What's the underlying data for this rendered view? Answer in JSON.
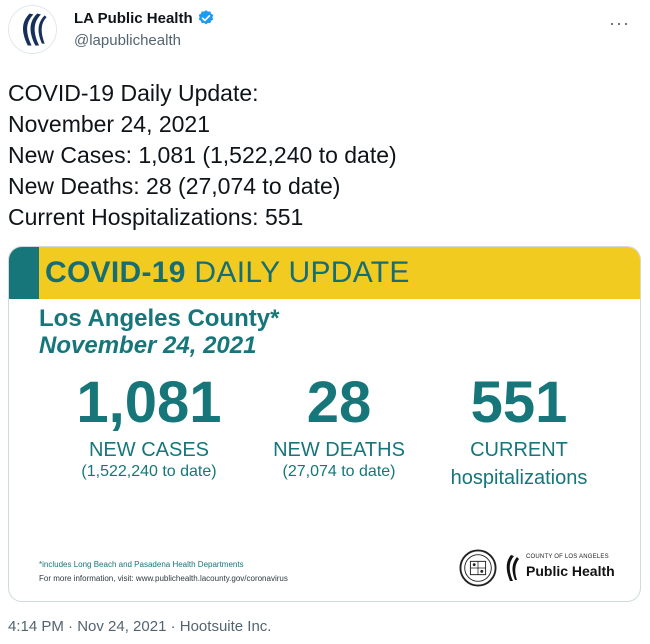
{
  "author": {
    "display_name": "LA Public Health",
    "handle": "@lapublichealth",
    "verified_icon": "verified-badge-icon",
    "more_icon": "ellipsis-icon"
  },
  "tweet": {
    "lines": [
      "COVID-19 Daily Update:",
      "November 24, 2021",
      "New Cases: 1,081 (1,522,240 to date)",
      "New Deaths: 28 (27,074 to date)",
      "Current Hospitalizations: 551"
    ]
  },
  "card": {
    "banner_bold": "COVID-19",
    "banner_rest": " DAILY UPDATE",
    "county": "Los Angeles County*",
    "date": "November 24, 2021",
    "stats": {
      "cases": {
        "value": "1,081",
        "label": "NEW CASES",
        "sub": "(1,522,240 to date)"
      },
      "deaths": {
        "value": "28",
        "label": "NEW DEATHS",
        "sub": "(27,074 to date)"
      },
      "hospitalizations": {
        "value": "551",
        "label": "CURRENT",
        "sub": "hospitalizations"
      }
    },
    "footnote": "*includes Long Beach and Pasadena Health Departments",
    "more_info": "For more information, visit: www.publichealth.lacounty.gov/coronavirus",
    "logo_county": "COUNTY OF LOS ANGELES",
    "logo_name": "Public Health",
    "colors": {
      "teal": "#16767a",
      "yellow": "#f2cb21"
    }
  },
  "meta": {
    "time_source": "4:14 PM · Nov 24, 2021 · Hootsuite Inc."
  }
}
